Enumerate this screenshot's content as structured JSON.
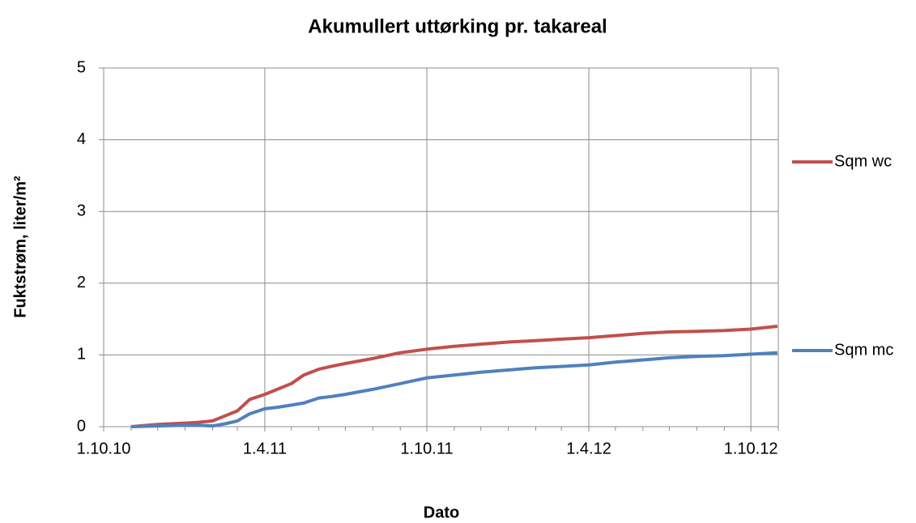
{
  "chart_data": {
    "type": "line",
    "title": "Akumullert uttørking pr. takareal",
    "x_label": "Dato",
    "y_label": "Fuktstrøm, liter/m²",
    "x": [
      "2010-11-01",
      "2010-12-01",
      "2011-01-01",
      "2011-01-15",
      "2011-02-01",
      "2011-02-15",
      "2011-03-01",
      "2011-03-15",
      "2011-04-01",
      "2011-04-15",
      "2011-05-01",
      "2011-05-15",
      "2011-06-01",
      "2011-06-15",
      "2011-07-01",
      "2011-08-01",
      "2011-09-01",
      "2011-10-01",
      "2011-11-01",
      "2011-12-01",
      "2012-01-01",
      "2012-02-01",
      "2012-03-01",
      "2012-04-01",
      "2012-05-01",
      "2012-06-01",
      "2012-07-01",
      "2012-08-01",
      "2012-09-01",
      "2012-10-01",
      "2012-10-31"
    ],
    "series": [
      {
        "name": "Sqm wc",
        "color": "#c0504d",
        "values": [
          0,
          0.03,
          0.05,
          0.06,
          0.08,
          0.15,
          0.22,
          0.38,
          0.45,
          0.52,
          0.6,
          0.72,
          0.8,
          0.84,
          0.88,
          0.95,
          1.03,
          1.08,
          1.12,
          1.15,
          1.18,
          1.2,
          1.22,
          1.24,
          1.27,
          1.3,
          1.32,
          1.33,
          1.34,
          1.36,
          1.4
        ]
      },
      {
        "name": "Sqm mc",
        "color": "#4f81bd",
        "values": [
          0,
          0.01,
          0.02,
          0.02,
          0.01,
          0.04,
          0.08,
          0.18,
          0.25,
          0.27,
          0.3,
          0.33,
          0.4,
          0.42,
          0.45,
          0.52,
          0.6,
          0.68,
          0.72,
          0.76,
          0.79,
          0.82,
          0.84,
          0.86,
          0.9,
          0.93,
          0.96,
          0.98,
          0.99,
          1.01,
          1.03
        ]
      }
    ],
    "xlim": [
      "2010-10-01",
      "2012-11-01"
    ],
    "xticks": [
      {
        "value": "2010-10-01",
        "label": "1.10.10"
      },
      {
        "value": "2011-04-01",
        "label": "1.4.11"
      },
      {
        "value": "2011-10-01",
        "label": "1.10.11"
      },
      {
        "value": "2012-04-01",
        "label": "1.4.12"
      },
      {
        "value": "2012-10-01",
        "label": "1.10.12"
      }
    ],
    "ylim": [
      0,
      5
    ],
    "yticks": [
      0,
      1,
      2,
      3,
      4,
      5
    ],
    "grid": true,
    "legend": "right"
  }
}
